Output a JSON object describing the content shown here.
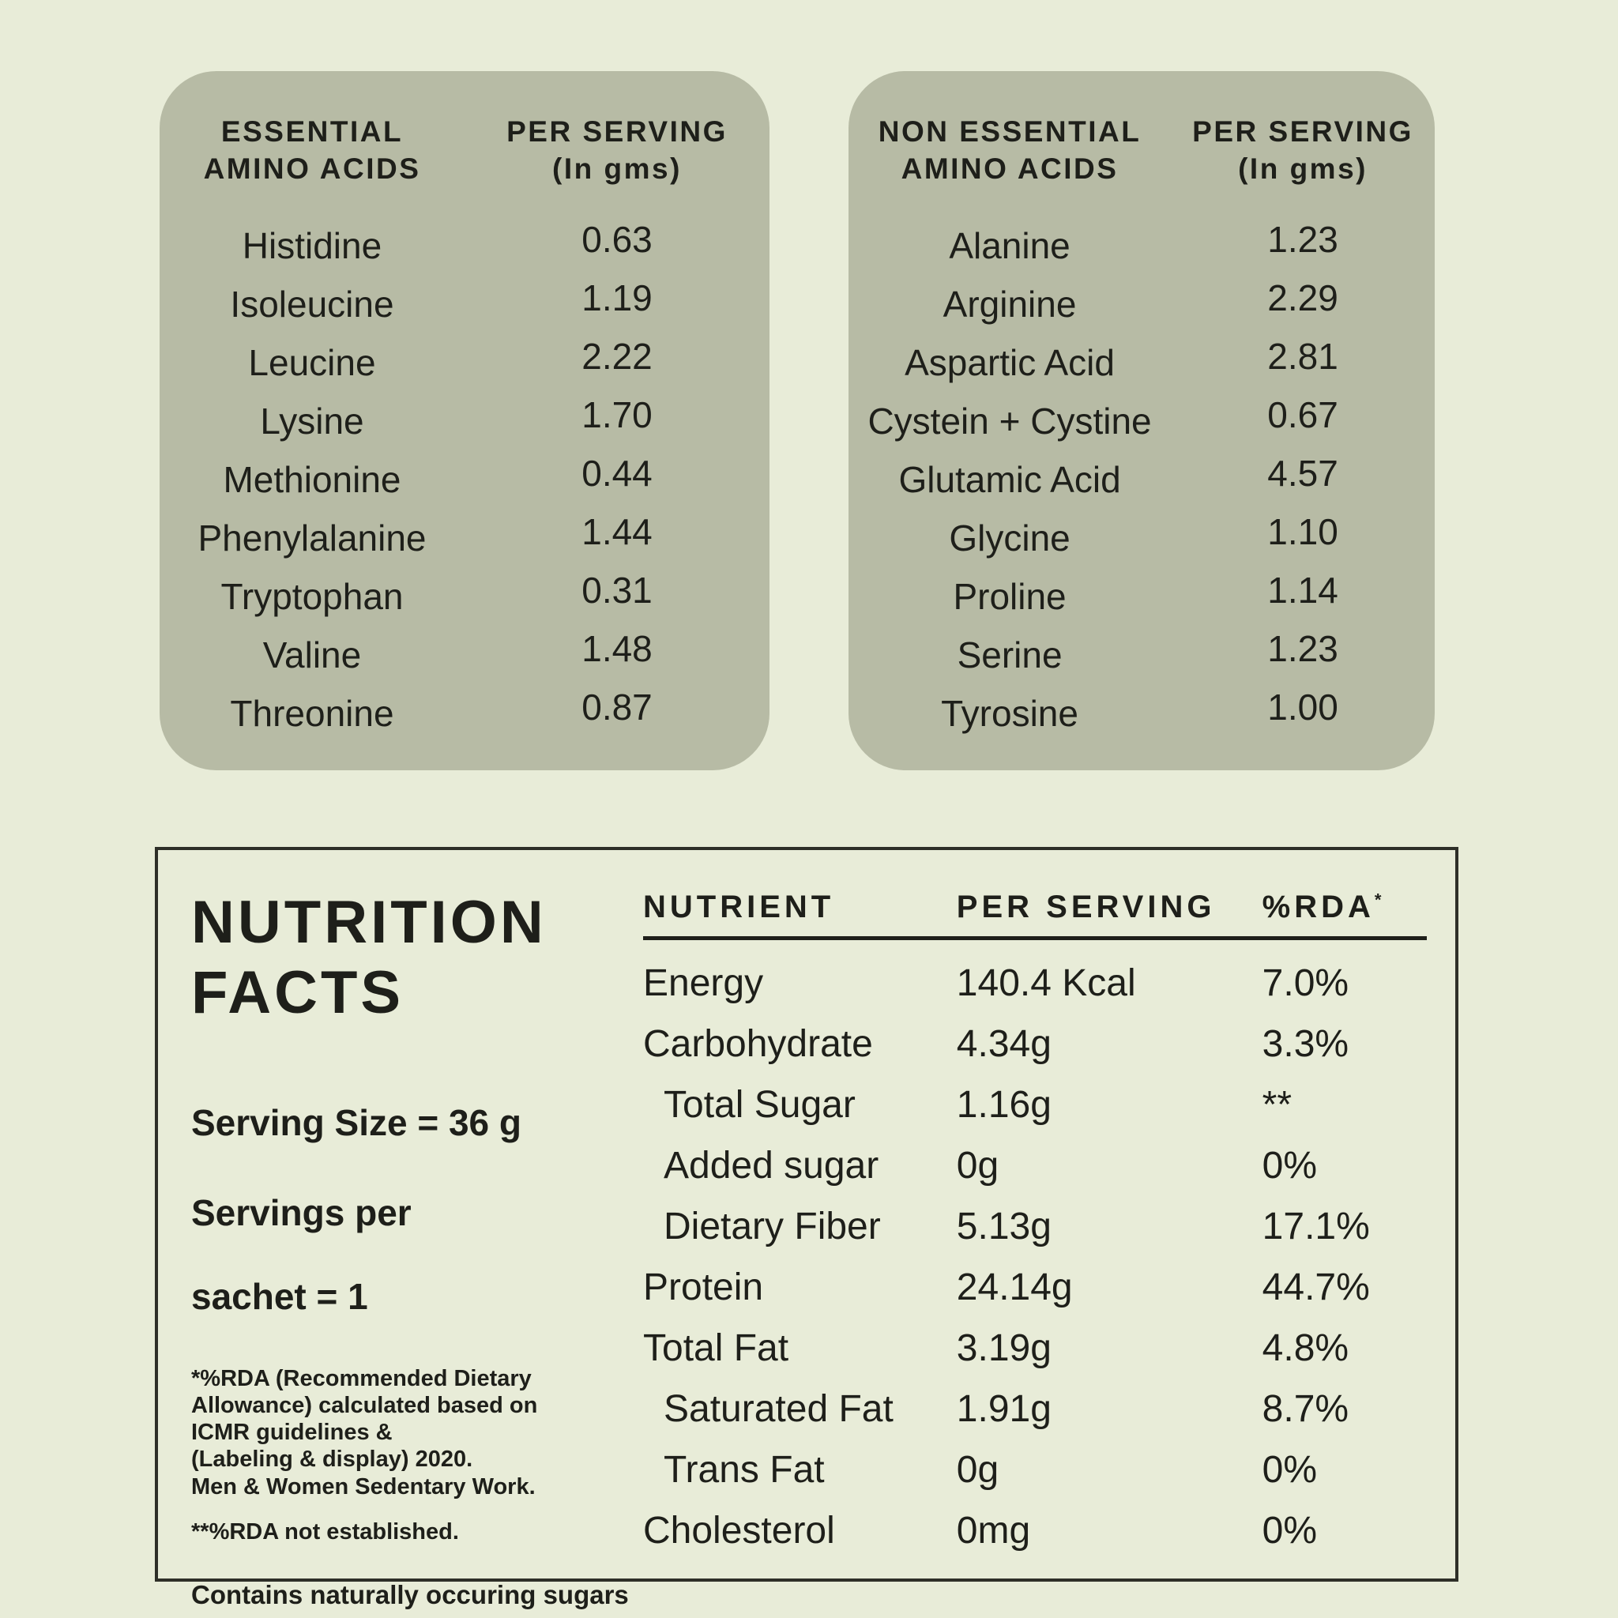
{
  "colors": {
    "page_bg": "#e8ecd8",
    "panel_bg": "#b7bba5",
    "ink": "#1e1f1a",
    "border": "#2e2f28"
  },
  "panels": [
    {
      "header": {
        "col1": [
          "ESSENTIAL",
          "AMINO ACIDS"
        ],
        "col2": [
          "PER SERVING",
          "(In gms)"
        ]
      },
      "rows": [
        {
          "name": "Histidine",
          "value": "0.63"
        },
        {
          "name": "Isoleucine",
          "value": "1.19"
        },
        {
          "name": "Leucine",
          "value": "2.22"
        },
        {
          "name": "Lysine",
          "value": "1.70"
        },
        {
          "name": "Methionine",
          "value": "0.44"
        },
        {
          "name": "Phenylalanine",
          "value": "1.44"
        },
        {
          "name": "Tryptophan",
          "value": "0.31"
        },
        {
          "name": "Valine",
          "value": "1.48"
        },
        {
          "name": "Threonine",
          "value": "0.87"
        }
      ]
    },
    {
      "header": {
        "col1": [
          "NON ESSENTIAL",
          "AMINO ACIDS"
        ],
        "col2": [
          "PER SERVING",
          "(In gms)"
        ]
      },
      "rows": [
        {
          "name": "Alanine",
          "value": "1.23"
        },
        {
          "name": "Arginine",
          "value": "2.29"
        },
        {
          "name": "Aspartic Acid",
          "value": "2.81"
        },
        {
          "name": "Cystein + Cystine",
          "value": "0.67"
        },
        {
          "name": "Glutamic Acid",
          "value": "4.57"
        },
        {
          "name": "Glycine",
          "value": "1.10"
        },
        {
          "name": "Proline",
          "value": "1.14"
        },
        {
          "name": "Serine",
          "value": "1.23"
        },
        {
          "name": "Tyrosine",
          "value": "1.00"
        }
      ]
    }
  ],
  "nutrition": {
    "title": [
      "NUTRITION",
      "FACTS"
    ],
    "serving_size": "Serving Size =  36 g",
    "servings_per": "Servings per",
    "sachet": "sachet = 1",
    "footnote_rda": [
      "*%RDA (Recommended Dietary",
      "Allowance) calculated based on",
      "ICMR guidelines &",
      "(Labeling & display) 2020.",
      "Men & Women Sedentary Work."
    ],
    "footnote_not_established": "**%RDA not established.",
    "footnote_sugars": "Contains naturally occuring sugars",
    "table": {
      "headers": {
        "nutrient": "NUTRIENT",
        "per_serving": "PER SERVING",
        "rda": "%RDA",
        "rda_sup": "*"
      },
      "rows": [
        {
          "nutrient": "Energy",
          "per_serving": "140.4 Kcal",
          "rda": "7.0%"
        },
        {
          "nutrient": "Carbohydrate",
          "per_serving": "4.34g",
          "rda": "3.3%"
        },
        {
          "nutrient": "Total Sugar",
          "per_serving": "1.16g",
          "rda": "**",
          "indent": true
        },
        {
          "nutrient": "Added sugar",
          "per_serving": "0g",
          "rda": "0%",
          "indent": true
        },
        {
          "nutrient": "Dietary Fiber",
          "per_serving": "5.13g",
          "rda": "17.1%",
          "indent": true
        },
        {
          "nutrient": "Protein",
          "per_serving": "24.14g",
          "rda": "44.7%"
        },
        {
          "nutrient": "Total Fat",
          "per_serving": "3.19g",
          "rda": "4.8%"
        },
        {
          "nutrient": "Saturated Fat",
          "per_serving": "1.91g",
          "rda": "8.7%",
          "indent": true
        },
        {
          "nutrient": "Trans Fat",
          "per_serving": "0g",
          "rda": "0%",
          "indent": true
        },
        {
          "nutrient": "Cholesterol",
          "per_serving": "0mg",
          "rda": "0%"
        }
      ]
    }
  }
}
